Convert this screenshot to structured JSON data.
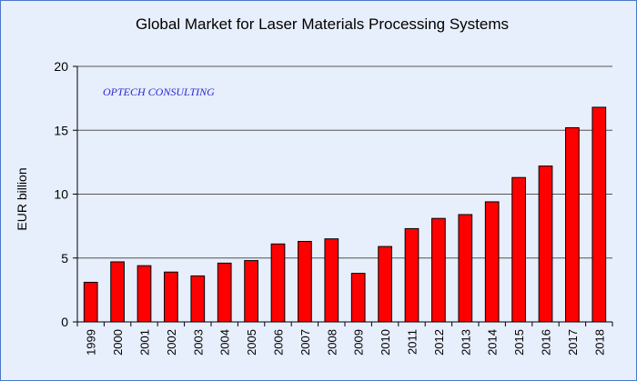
{
  "chart_data": {
    "type": "bar",
    "title": "Global Market for Laser Materials Processing Systems",
    "xlabel": "",
    "ylabel": "EUR billion",
    "ylim": [
      0,
      20
    ],
    "yticks": [
      0,
      5,
      10,
      15,
      20
    ],
    "grid": true,
    "legend": "none",
    "annotation": "OPTECH CONSULTING",
    "categories": [
      "1999",
      "2000",
      "2001",
      "2002",
      "2003",
      "2004",
      "2005",
      "2006",
      "2007",
      "2008",
      "2009",
      "2010",
      "2011",
      "2012",
      "2013",
      "2014",
      "2015",
      "2016",
      "2017",
      "2018"
    ],
    "values": [
      3.1,
      4.7,
      4.4,
      3.9,
      3.6,
      4.6,
      4.8,
      6.1,
      6.3,
      6.5,
      3.8,
      5.9,
      7.3,
      8.1,
      8.4,
      9.4,
      11.3,
      12.2,
      15.2,
      16.8
    ],
    "colors": {
      "bar": "#ff0000",
      "bar_edge": "#000000",
      "plot_bg": "#e7eefc",
      "grid": "#555555"
    }
  }
}
